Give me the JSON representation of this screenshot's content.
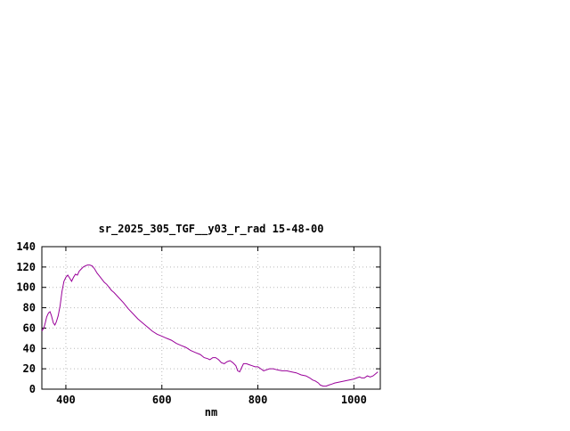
{
  "chart_data": {
    "type": "line",
    "title": "sr_2025_305_TGF__y03_r_rad 15-48-00",
    "xlabel": "nm",
    "ylabel": "",
    "xlim": [
      350,
      1055
    ],
    "ylim": [
      0,
      140
    ],
    "x_ticks": [
      400,
      600,
      800,
      1000
    ],
    "y_ticks": [
      0,
      20,
      40,
      60,
      80,
      100,
      120,
      140
    ],
    "grid": true,
    "legend": "none",
    "line_color": "#990099",
    "grid_color": "#b8b8b8",
    "axis_color": "#000000",
    "background_color": "#ffffff",
    "series": [
      {
        "name": "sr_2025_305_TGF__y03_r_rad",
        "points": [
          [
            350,
            57
          ],
          [
            354,
            60
          ],
          [
            357,
            65
          ],
          [
            360,
            71
          ],
          [
            364,
            75
          ],
          [
            367,
            76
          ],
          [
            370,
            72
          ],
          [
            374,
            65
          ],
          [
            377,
            63
          ],
          [
            380,
            66
          ],
          [
            384,
            72
          ],
          [
            388,
            82
          ],
          [
            392,
            96
          ],
          [
            396,
            106
          ],
          [
            400,
            110
          ],
          [
            404,
            112
          ],
          [
            408,
            109
          ],
          [
            412,
            106
          ],
          [
            416,
            110
          ],
          [
            420,
            113
          ],
          [
            424,
            112
          ],
          [
            428,
            116
          ],
          [
            432,
            118
          ],
          [
            436,
            120
          ],
          [
            440,
            121
          ],
          [
            445,
            122
          ],
          [
            450,
            122
          ],
          [
            455,
            121
          ],
          [
            460,
            118
          ],
          [
            465,
            114
          ],
          [
            470,
            111
          ],
          [
            475,
            108
          ],
          [
            480,
            105
          ],
          [
            485,
            103
          ],
          [
            490,
            100
          ],
          [
            495,
            97
          ],
          [
            500,
            95
          ],
          [
            510,
            90
          ],
          [
            520,
            85
          ],
          [
            530,
            79
          ],
          [
            540,
            74
          ],
          [
            550,
            69
          ],
          [
            560,
            65
          ],
          [
            570,
            61
          ],
          [
            580,
            57
          ],
          [
            590,
            54
          ],
          [
            600,
            52
          ],
          [
            610,
            50
          ],
          [
            620,
            48
          ],
          [
            630,
            45
          ],
          [
            640,
            43
          ],
          [
            650,
            41
          ],
          [
            660,
            38
          ],
          [
            670,
            36
          ],
          [
            680,
            34
          ],
          [
            688,
            31
          ],
          [
            695,
            30
          ],
          [
            700,
            29
          ],
          [
            706,
            31
          ],
          [
            712,
            31
          ],
          [
            718,
            29
          ],
          [
            724,
            26
          ],
          [
            730,
            25
          ],
          [
            736,
            27
          ],
          [
            742,
            28
          ],
          [
            748,
            26
          ],
          [
            754,
            23
          ],
          [
            758,
            18
          ],
          [
            762,
            17
          ],
          [
            766,
            21
          ],
          [
            770,
            25
          ],
          [
            776,
            25
          ],
          [
            782,
            24
          ],
          [
            788,
            23
          ],
          [
            794,
            22
          ],
          [
            800,
            22
          ],
          [
            806,
            20
          ],
          [
            812,
            18
          ],
          [
            818,
            19
          ],
          [
            824,
            20
          ],
          [
            832,
            20
          ],
          [
            840,
            19
          ],
          [
            850,
            18
          ],
          [
            860,
            18
          ],
          [
            870,
            17
          ],
          [
            880,
            16
          ],
          [
            890,
            14
          ],
          [
            900,
            13
          ],
          [
            908,
            11
          ],
          [
            914,
            9
          ],
          [
            920,
            8
          ],
          [
            926,
            6
          ],
          [
            930,
            4
          ],
          [
            936,
            3
          ],
          [
            942,
            3
          ],
          [
            948,
            4
          ],
          [
            954,
            5
          ],
          [
            960,
            6
          ],
          [
            970,
            7
          ],
          [
            980,
            8
          ],
          [
            990,
            9
          ],
          [
            1000,
            10
          ],
          [
            1006,
            11
          ],
          [
            1012,
            12
          ],
          [
            1016,
            11
          ],
          [
            1022,
            11
          ],
          [
            1028,
            13
          ],
          [
            1034,
            12
          ],
          [
            1040,
            13
          ],
          [
            1045,
            15
          ],
          [
            1050,
            17
          ]
        ]
      }
    ]
  }
}
